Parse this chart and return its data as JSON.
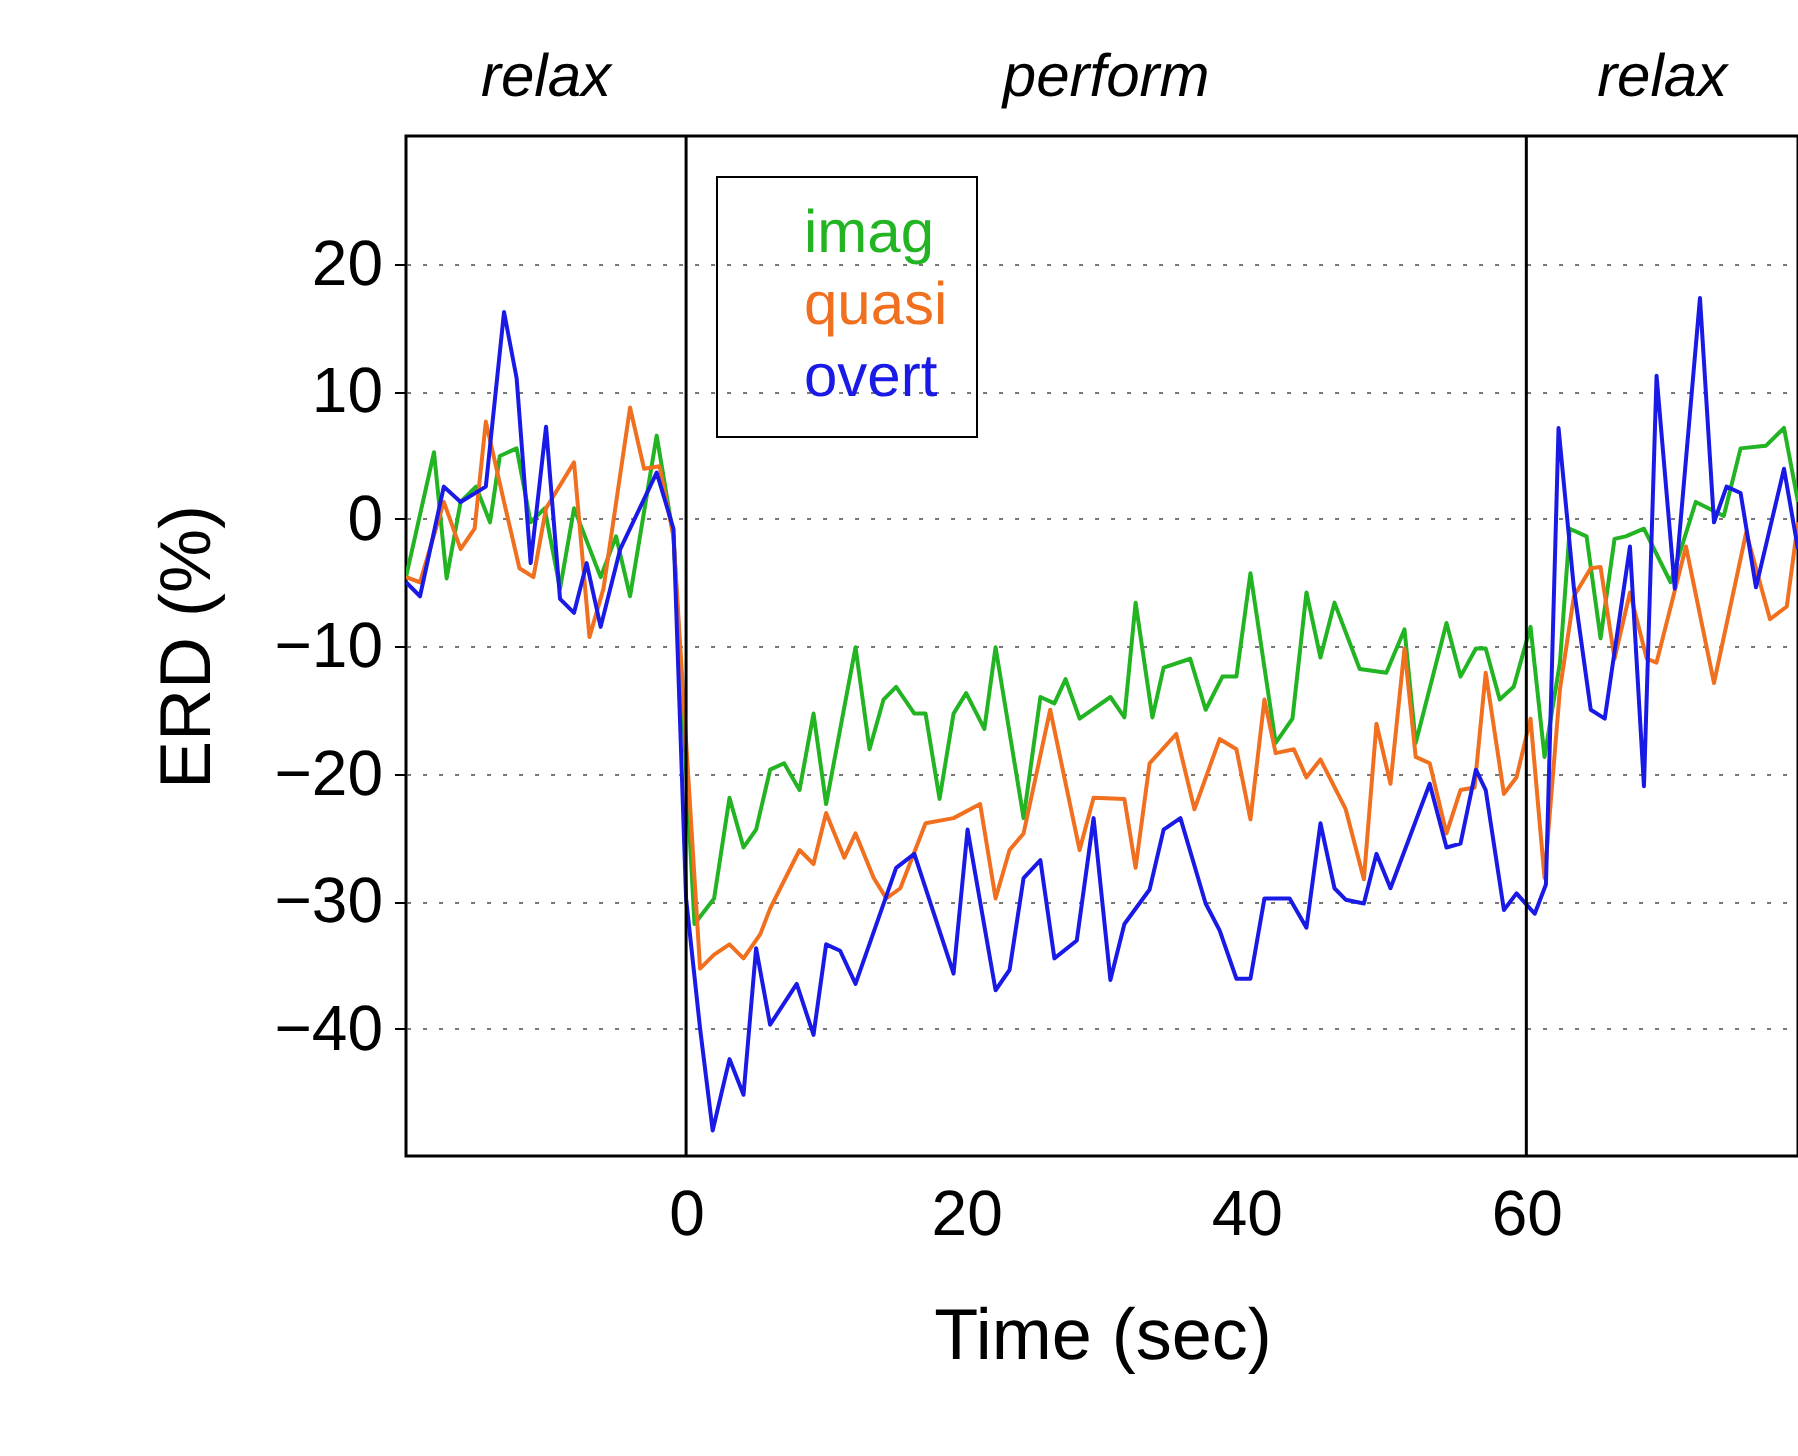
{
  "chart_data": {
    "type": "line",
    "xlabel": "Time (sec)",
    "ylabel": "ERD (%)",
    "xlim": [
      -20,
      79.4
    ],
    "xticks": [
      0,
      20,
      40,
      60
    ],
    "ylim": [
      -50,
      30
    ],
    "yticks": [
      -40,
      -30,
      -20,
      -10,
      0,
      10,
      20
    ],
    "grid": true,
    "legend": "top left",
    "marker": "none",
    "line_style": "solid",
    "annotations": [
      "relax",
      "perform",
      "relax"
    ],
    "ref_lines": [
      {
        "axis": "x",
        "value": 0,
        "color": "#000000"
      },
      {
        "axis": "x",
        "value": 60,
        "color": "#000000"
      }
    ],
    "series": [
      {
        "name": "imag",
        "color": "#22b422",
        "x": [
          -20,
          -18,
          -17.1,
          -16.1,
          -15,
          -14,
          -13.3,
          -12.1,
          -11.1,
          -10.1,
          -9,
          -8,
          -6.1,
          -5,
          -4,
          -2.1,
          -0.9,
          0.6,
          2,
          3.1,
          4.1,
          5,
          6,
          7,
          8.1,
          9.1,
          10,
          12.1,
          13.1,
          14.1,
          15,
          16.3,
          17.1,
          18.1,
          19.1,
          20,
          21.3,
          22.1,
          24.1,
          25.3,
          26.3,
          27.1,
          28.1,
          30.3,
          31.3,
          32.1,
          33.3,
          34.1,
          36,
          37.1,
          38.3,
          39.3,
          40.3,
          42.1,
          43.3,
          44.3,
          45.3,
          46.3,
          48.1,
          50,
          51.3,
          52.1,
          54.3,
          55.3,
          56.4,
          57.1,
          58.1,
          59.1,
          60.3,
          61.3,
          62.4,
          63.1,
          64.3,
          65.3,
          66.3,
          67.1,
          68.4,
          70.3,
          72.1,
          74.1,
          75.3,
          77.1,
          78.4,
          79.4
        ],
        "values": [
          -4.6,
          5.2,
          -4.7,
          1.3,
          2.5,
          -0.3,
          4.9,
          5.5,
          -0.3,
          0.8,
          -5.5,
          0.8,
          -4.6,
          -1.4,
          -6.1,
          6.5,
          -1.4,
          -31.8,
          -29.8,
          -21.9,
          -25.8,
          -24.4,
          -19.7,
          -19.2,
          -21.3,
          -15.3,
          -22.4,
          -10.1,
          -18.1,
          -14.2,
          -13.2,
          -15.3,
          -15.3,
          -22,
          -15.3,
          -13.7,
          -16.5,
          -10.1,
          -23.5,
          -14,
          -14.5,
          -12.6,
          -15.7,
          -14,
          -15.6,
          -6.6,
          -15.6,
          -11.7,
          -11,
          -15,
          -12.4,
          -12.4,
          -4.3,
          -17.6,
          -15.7,
          -5.8,
          -10.9,
          -6.6,
          -11.8,
          -12.1,
          -8.7,
          -17.6,
          -8.2,
          -12.4,
          -10.2,
          -10.2,
          -14.2,
          -13.2,
          -8.5,
          -18.7,
          -11.3,
          -0.8,
          -1.4,
          -9.4,
          -1.6,
          -1.4,
          -0.8,
          -5,
          1.3,
          0.2,
          5.5,
          5.7,
          7.1,
          1.3
        ]
      },
      {
        "name": "quasi",
        "color": "#f07020",
        "x": [
          -20,
          -19,
          -17.3,
          -16.1,
          -15.1,
          -14.3,
          -13,
          -11.9,
          -10.9,
          -10,
          -8,
          -6.9,
          -5.9,
          -4,
          -3,
          -1.9,
          -0.9,
          1,
          2,
          3.1,
          4.1,
          5.3,
          6,
          8.1,
          9.1,
          10,
          11.3,
          12.1,
          13.4,
          14.3,
          15.3,
          17.1,
          19.1,
          21,
          22.1,
          23.1,
          24.1,
          26,
          28.1,
          29.1,
          31.3,
          32.1,
          33.1,
          35,
          36.3,
          38.1,
          39.3,
          40.3,
          41.3,
          42.1,
          43.4,
          44.3,
          45.3,
          47.1,
          48.4,
          49.3,
          50.3,
          51.3,
          52.1,
          53.1,
          54.3,
          55.3,
          56.3,
          57.1,
          58.4,
          59.3,
          60.3,
          61.3,
          62.4,
          63.4,
          64.6,
          65.3,
          66.3,
          67.4,
          68.6,
          69.3,
          71.4,
          73.4,
          75.7,
          77.4,
          78.6,
          79.4
        ],
        "values": [
          -4.6,
          -5,
          1.3,
          -2.4,
          -0.8,
          7.6,
          1.3,
          -3.9,
          -4.6,
          0.8,
          4.4,
          -9.3,
          -5.5,
          8.7,
          3.9,
          4.1,
          -1.4,
          -35.3,
          -34.2,
          -33.4,
          -34.5,
          -32.6,
          -30.6,
          -26,
          -27.1,
          -23.1,
          -26.6,
          -24.7,
          -28.2,
          -29.8,
          -29,
          -23.9,
          -23.5,
          -22.4,
          -29.8,
          -26,
          -24.7,
          -15,
          -26,
          -21.9,
          -22,
          -27.4,
          -19.2,
          -16.9,
          -22.8,
          -17.3,
          -18.1,
          -23.6,
          -14.2,
          -18.4,
          -18.1,
          -20.3,
          -18.9,
          -22.8,
          -28.3,
          -16.1,
          -20.8,
          -10.2,
          -18.7,
          -19.2,
          -24.7,
          -21.3,
          -21.1,
          -12.1,
          -21.6,
          -20.3,
          -15.7,
          -28.2,
          -13.4,
          -6.1,
          -3.9,
          -3.8,
          -11,
          -5.8,
          -11,
          -11.3,
          -2.2,
          -12.9,
          -1.1,
          -7.9,
          -6.9,
          -0.3
        ]
      },
      {
        "name": "overt",
        "color": "#1a1ae6",
        "x": [
          -20,
          -19,
          -17.3,
          -16.1,
          -14.3,
          -13,
          -12.1,
          -11.1,
          -10,
          -9,
          -8,
          -7.1,
          -6.1,
          -4.7,
          -2.1,
          -0.9,
          0,
          1,
          1.9,
          3.1,
          4.1,
          5,
          6,
          7.9,
          9.1,
          10,
          11,
          12.1,
          15,
          16.3,
          19.1,
          20.1,
          22.1,
          23.1,
          24.1,
          25.3,
          26.3,
          27.9,
          29.1,
          30.3,
          31.3,
          33.1,
          34.1,
          35.3,
          37.1,
          38.1,
          39.3,
          40.3,
          41.3,
          43.1,
          44.3,
          45.3,
          46.3,
          47.1,
          48.4,
          49.3,
          50.3,
          53.1,
          54.3,
          55.3,
          56.4,
          57.1,
          58.4,
          59.3,
          60.6,
          61.4,
          62.3,
          63.4,
          64.6,
          65.6,
          67.4,
          68.4,
          69.3,
          70.6,
          72.4,
          73.4,
          74.3,
          75.3,
          76.4,
          78.4,
          79.4
        ],
        "values": [
          -5,
          -6.1,
          2.5,
          1.3,
          2.5,
          16.2,
          11,
          -3.5,
          7.2,
          -6.3,
          -7.4,
          -3.5,
          -8.5,
          -2.4,
          3.6,
          -0.8,
          -29.8,
          -40,
          -48,
          -42.4,
          -45.2,
          -33.7,
          -39.7,
          -36.5,
          -40.5,
          -33.4,
          -33.9,
          -36.5,
          -27.4,
          -26.3,
          -35.7,
          -24.4,
          -37,
          -35.4,
          -28.2,
          -26.8,
          -34.5,
          -33.1,
          -23.5,
          -36.2,
          -31.8,
          -29.1,
          -24.4,
          -23.5,
          -30.2,
          -32.3,
          -36.1,
          -36.1,
          -29.8,
          -29.8,
          -32.1,
          -23.9,
          -29,
          -29.9,
          -30.2,
          -26.3,
          -29,
          -20.8,
          -25.8,
          -25.5,
          -19.7,
          -21.3,
          -30.7,
          -29.4,
          -31,
          -28.7,
          7.1,
          -5.5,
          -15,
          -15.7,
          -2.2,
          -21,
          11.2,
          -5.5,
          17.3,
          -0.3,
          2.5,
          2,
          -5.4,
          3.9,
          -2.4
        ]
      }
    ]
  }
}
